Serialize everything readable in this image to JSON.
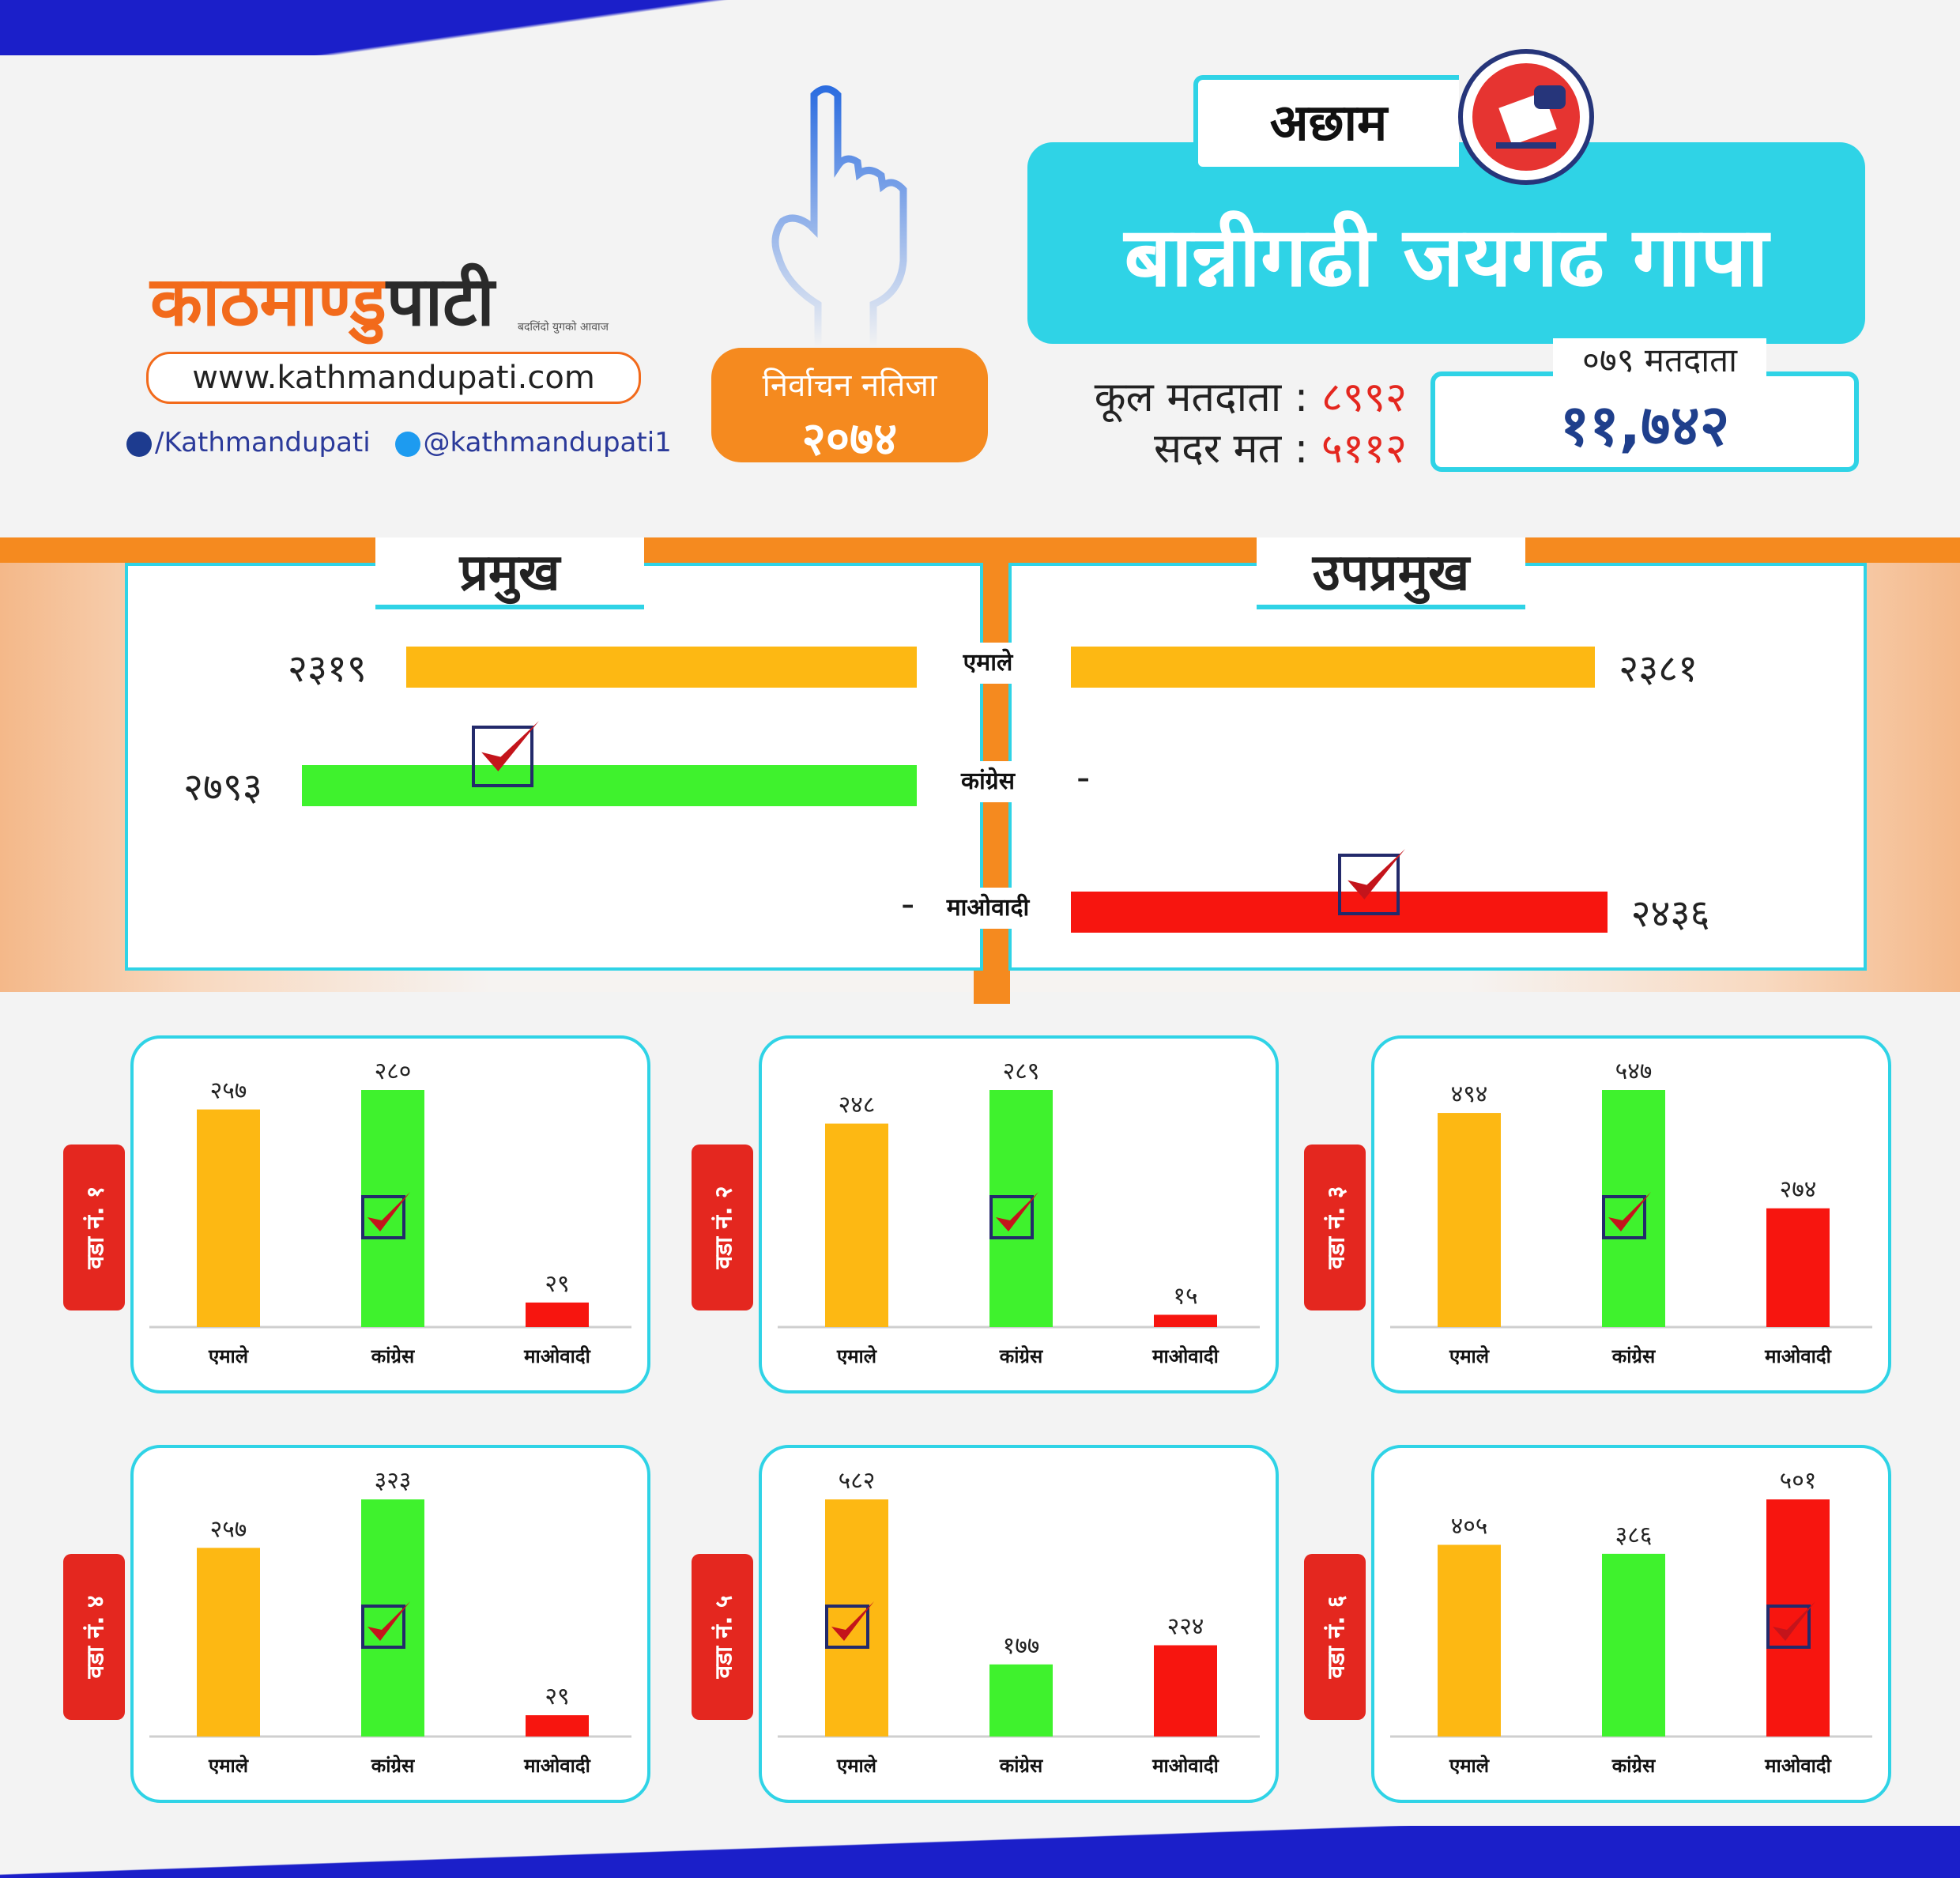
{
  "brand": {
    "logo_main": "काठमाण्डु",
    "logo_dark": "पाटी",
    "tagline": "बदलिंदो युगको आवाज",
    "website": "www.kathmandupati.com",
    "facebook": "/Kathmandupati",
    "twitter": "@kathmandupati1"
  },
  "badge": {
    "line1": "निर्वाचन नतिजा",
    "line2": "२०७४"
  },
  "header": {
    "district": "अछाम",
    "municipality": "बान्नीगढी जयगढ गापा",
    "total_voters_label": "कूल मतदाता :",
    "total_voters_value": "८९९२",
    "valid_votes_label": "सदर मत :",
    "valid_votes_value": "५११२",
    "voters_079_label": "०७९ मतदाता",
    "voters_079_value": "११,७४२"
  },
  "colors": {
    "emale": "#fdb813",
    "congress": "#3ff22d",
    "maoist": "#f7150f",
    "accent": "#2fd3e6",
    "orange": "#f58a1f"
  },
  "chart_data": [
    {
      "type": "bar",
      "title": "प्रमुख",
      "categories": [
        "एमाले",
        "कांग्रेस",
        "माओवादी"
      ],
      "values": [
        2319,
        2793,
        null
      ],
      "value_labels": [
        "२३१९",
        "२७९३",
        "-"
      ],
      "winner": "कांग्रेस"
    },
    {
      "type": "bar",
      "title": "उपप्रमुख",
      "categories": [
        "एमाले",
        "कांग्रेस",
        "माओवादी"
      ],
      "values": [
        2381,
        null,
        2436
      ],
      "value_labels": [
        "२३८१",
        "-",
        "२४३६"
      ],
      "winner": "माओवादी"
    },
    {
      "type": "bar",
      "title": "वडा नं. १",
      "categories": [
        "एमाले",
        "कांग्रेस",
        "माओवादी"
      ],
      "values": [
        257,
        280,
        29
      ],
      "value_labels": [
        "२५७",
        "२८०",
        "२९"
      ],
      "winner_index": 1
    },
    {
      "type": "bar",
      "title": "वडा नं. २",
      "categories": [
        "एमाले",
        "कांग्रेस",
        "माओवादी"
      ],
      "values": [
        248,
        289,
        15
      ],
      "value_labels": [
        "२४८",
        "२८९",
        "१५"
      ],
      "winner_index": 1
    },
    {
      "type": "bar",
      "title": "वडा नं. ३",
      "categories": [
        "एमाले",
        "कांग्रेस",
        "माओवादी"
      ],
      "values": [
        494,
        547,
        274
      ],
      "value_labels": [
        "४९४",
        "५४७",
        "२७४"
      ],
      "winner_index": 1
    },
    {
      "type": "bar",
      "title": "वडा नं. ४",
      "categories": [
        "एमाले",
        "कांग्रेस",
        "माओवादी"
      ],
      "values": [
        257,
        323,
        29
      ],
      "value_labels": [
        "२५७",
        "३२३",
        "२९"
      ],
      "winner_index": 1
    },
    {
      "type": "bar",
      "title": "वडा नं. ५",
      "categories": [
        "एमाले",
        "कांग्रेस",
        "माओवादी"
      ],
      "values": [
        582,
        177,
        224
      ],
      "value_labels": [
        "५८२",
        "१७७",
        "२२४"
      ],
      "winner_index": 0
    },
    {
      "type": "bar",
      "title": "वडा नं. ६",
      "categories": [
        "एमाले",
        "कांग्रेस",
        "माओवादी"
      ],
      "values": [
        405,
        386,
        501
      ],
      "value_labels": [
        "४०५",
        "३८६",
        "५०१"
      ],
      "winner_index": 2
    }
  ]
}
